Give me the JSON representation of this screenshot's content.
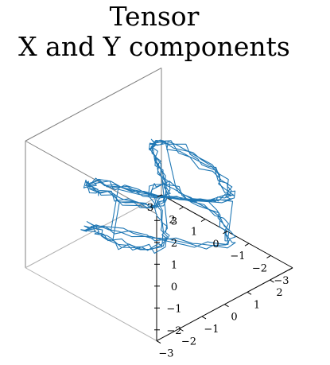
{
  "title_line1": "Tensor",
  "title_line2": "X and Y components",
  "colors": {
    "line": "#1f77b4",
    "pane_edge": "#808080",
    "axis": "#000000"
  },
  "chart_data": {
    "type": "line3d",
    "title": "Tensor\nX and Y components",
    "xlabel": "",
    "ylabel": "",
    "zlabel": "",
    "xlim": [
      -3,
      3
    ],
    "ylim": [
      -3,
      3
    ],
    "zlim": [
      -2.5,
      3.3
    ],
    "x_ticks": [
      "3",
      "2",
      "1",
      "0",
      "−1",
      "−2",
      "−3"
    ],
    "y_ticks": [
      "2",
      "1",
      "0",
      "−1",
      "−2",
      "−3"
    ],
    "z_ticks": [
      "−2",
      "−1",
      "0",
      "1",
      "2",
      "3"
    ],
    "grid": false,
    "series": [
      {
        "description_of_shape": "two stacked noisy figure-eight loops",
        "samples": 420,
        "x_amplitude": 2.3,
        "y_amplitude": 2.2,
        "z_range": [
          -1.8,
          2.6
        ]
      }
    ]
  }
}
